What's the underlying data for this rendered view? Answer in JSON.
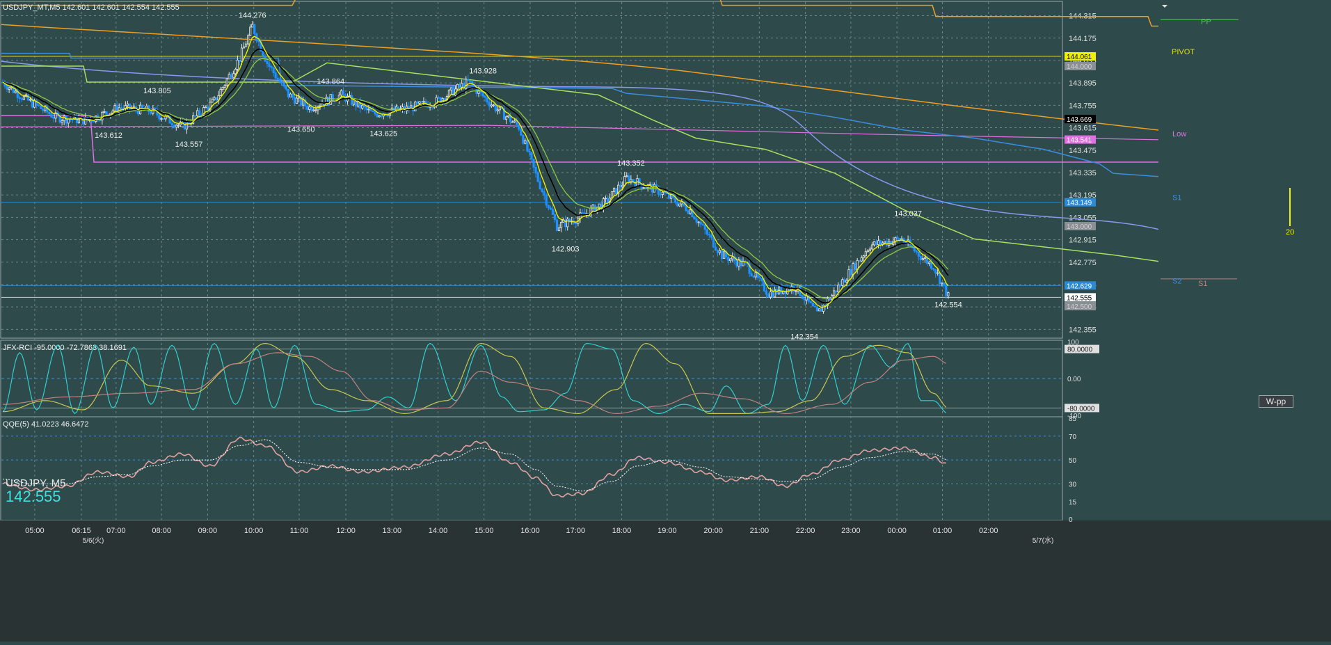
{
  "header": {
    "symbol_line": "USDJPY_MT,M5  142.601 142.601 142.554 142.555",
    "rci_line": "JFX-RCI -95.0000 -72.7863 38.1691",
    "qqe_line": "QQE(5) 41.0223 46.6472"
  },
  "symbol_box": {
    "name": "USDJPY, M5",
    "price": "142.555"
  },
  "pivots": {
    "pp": "PP",
    "pivot": "PIVOT",
    "low": "Low",
    "s1_a": "S1",
    "s1_b": "S1",
    "s2": "S2",
    "bar_value": "20"
  },
  "wpp_button": "W-pp",
  "price_axis": {
    "ticks": [
      "144.315",
      "144.175",
      "144.035",
      "143.895",
      "143.755",
      "143.615",
      "143.475",
      "143.335",
      "143.195",
      "143.055",
      "142.915",
      "142.775",
      "142.635",
      "142.495",
      "142.355"
    ],
    "badges": [
      {
        "label": "144.061",
        "value": 144.061,
        "bg": "#f0f000",
        "fg": "#000000"
      },
      {
        "label": "144.000",
        "value": 144.0,
        "bg": "#8a8f95",
        "fg": "#d0d0d0"
      },
      {
        "label": "143.669",
        "value": 143.669,
        "bg": "#000000",
        "fg": "#ffffff"
      },
      {
        "label": "143.541",
        "value": 143.541,
        "bg": "#e070e0",
        "fg": "#ffffff"
      },
      {
        "label": "143.149",
        "value": 143.149,
        "bg": "#2a8ad8",
        "fg": "#ffffff"
      },
      {
        "label": "143.000",
        "value": 143.0,
        "bg": "#8a8f95",
        "fg": "#d0d0d0"
      },
      {
        "label": "142.629",
        "value": 142.629,
        "bg": "#2a8ad8",
        "fg": "#ffffff"
      },
      {
        "label": "142.555",
        "value": 142.555,
        "bg": "#ffffff",
        "fg": "#000000"
      },
      {
        "label": "142.500",
        "value": 142.5,
        "bg": "#8a8f95",
        "fg": "#d0d0d0"
      }
    ]
  },
  "rci_axis": {
    "ticks": [
      "100",
      "80.0000",
      "0.00",
      "-80.0000",
      "-100"
    ]
  },
  "qqe_axis": {
    "ticks": [
      "85",
      "70",
      "50",
      "30",
      "15"
    ]
  },
  "time_axis": {
    "ticks": [
      "05:00",
      "06:15",
      "07:00",
      "08:00",
      "09:00",
      "10:00",
      "11:00",
      "12:00",
      "13:00",
      "14:00",
      "15:00",
      "16:00",
      "17:00",
      "18:00",
      "19:00",
      "20:00",
      "21:00",
      "22:00",
      "23:00",
      "00:00",
      "01:00",
      "02:00"
    ],
    "dates": [
      "5/6(火)",
      "5/7(水)"
    ]
  },
  "colors": {
    "background": "#2f4a4a",
    "bull": "#e8e8e8",
    "bear": "#1e90ff",
    "ema_fast": "#f0f000",
    "ema_mid": "#000000",
    "ema_slow": "#a8e060",
    "sma_long": "#f0a020",
    "sma_mid": "#8899ee",
    "pivot_pink": "#e070e0",
    "rci_fast": "#30d0d0",
    "rci_mid": "#c8c850",
    "rci_slow": "#c08080",
    "qqe_main": "#e0a0a0",
    "qqe_signal": "#ffffff"
  },
  "chart_data": [
    {
      "type": "candlestick",
      "title": "USDJPY_MT,M5",
      "ylim": [
        142.3,
        144.4
      ],
      "x": [
        "05:00",
        "06:15",
        "07:00",
        "08:00",
        "09:00",
        "10:00",
        "11:00",
        "12:00",
        "13:00",
        "14:00",
        "15:00",
        "16:00",
        "17:00",
        "18:00",
        "19:00",
        "20:00",
        "21:00",
        "22:00",
        "23:00",
        "00:00",
        "01:00",
        "02:00"
      ],
      "anchors": [
        {
          "t": 0,
          "p": 143.9
        },
        {
          "t": 10,
          "p": 143.8
        },
        {
          "t": 25,
          "p": 143.68
        },
        {
          "t": 40,
          "p": 143.66
        },
        {
          "t": 55,
          "p": 143.74
        },
        {
          "t": 70,
          "p": 143.72
        },
        {
          "t": 85,
          "p": 143.62
        },
        {
          "t": 100,
          "p": 143.78
        },
        {
          "t": 112,
          "p": 144.05
        },
        {
          "t": 118,
          "p": 144.25
        },
        {
          "t": 125,
          "p": 144.02
        },
        {
          "t": 135,
          "p": 143.82
        },
        {
          "t": 145,
          "p": 143.74
        },
        {
          "t": 160,
          "p": 143.82
        },
        {
          "t": 175,
          "p": 143.7
        },
        {
          "t": 190,
          "p": 143.73
        },
        {
          "t": 205,
          "p": 143.78
        },
        {
          "t": 220,
          "p": 143.9
        },
        {
          "t": 232,
          "p": 143.75
        },
        {
          "t": 244,
          "p": 143.62
        },
        {
          "t": 252,
          "p": 143.32
        },
        {
          "t": 262,
          "p": 143.0
        },
        {
          "t": 272,
          "p": 143.05
        },
        {
          "t": 285,
          "p": 143.15
        },
        {
          "t": 295,
          "p": 143.3
        },
        {
          "t": 310,
          "p": 143.22
        },
        {
          "t": 325,
          "p": 143.1
        },
        {
          "t": 340,
          "p": 142.82
        },
        {
          "t": 352,
          "p": 142.75
        },
        {
          "t": 362,
          "p": 142.58
        },
        {
          "t": 375,
          "p": 142.62
        },
        {
          "t": 385,
          "p": 142.45
        },
        {
          "t": 395,
          "p": 142.62
        },
        {
          "t": 410,
          "p": 142.88
        },
        {
          "t": 425,
          "p": 142.92
        },
        {
          "t": 435,
          "p": 142.8
        },
        {
          "t": 440,
          "p": 142.75
        },
        {
          "t": 447,
          "p": 142.56
        }
      ],
      "annotations": [
        {
          "label": "144.276",
          "t": 118,
          "p": 144.276,
          "pos": "above"
        },
        {
          "label": "143.805",
          "t": 73,
          "p": 143.805,
          "pos": "above"
        },
        {
          "label": "143.612",
          "t": 50,
          "p": 143.612,
          "pos": "below"
        },
        {
          "label": "143.557",
          "t": 88,
          "p": 143.557,
          "pos": "below"
        },
        {
          "label": "143.864",
          "t": 155,
          "p": 143.864,
          "pos": "above"
        },
        {
          "label": "143.650",
          "t": 141,
          "p": 143.65,
          "pos": "below"
        },
        {
          "label": "143.625",
          "t": 180,
          "p": 143.625,
          "pos": "below"
        },
        {
          "label": "143.928",
          "t": 227,
          "p": 143.928,
          "pos": "above"
        },
        {
          "label": "143.352",
          "t": 297,
          "p": 143.352,
          "pos": "above"
        },
        {
          "label": "142.903",
          "t": 266,
          "p": 142.903,
          "pos": "below"
        },
        {
          "label": "143.037",
          "t": 428,
          "p": 143.037,
          "pos": "above"
        },
        {
          "label": "142.354",
          "t": 379,
          "p": 142.354,
          "pos": "below"
        },
        {
          "label": "142.554",
          "t": 447,
          "p": 142.554,
          "pos": "below"
        }
      ]
    },
    {
      "type": "line",
      "title": "JFX-RCI",
      "ylim": [
        -100,
        100
      ],
      "series": [
        {
          "name": "-95.0000",
          "anchors": [
            [
              0,
              -90
            ],
            [
              8,
              70
            ],
            [
              16,
              -85
            ],
            [
              26,
              90
            ],
            [
              34,
              -95
            ],
            [
              44,
              90
            ],
            [
              52,
              -80
            ],
            [
              62,
              85
            ],
            [
              70,
              -70
            ],
            [
              80,
              90
            ],
            [
              90,
              -85
            ],
            [
              100,
              95
            ],
            [
              110,
              -70
            ],
            [
              120,
              80
            ],
            [
              128,
              -80
            ],
            [
              138,
              90
            ],
            [
              148,
              -70
            ],
            [
              160,
              -90
            ],
            [
              172,
              -85
            ],
            [
              182,
              -50
            ],
            [
              192,
              -80
            ],
            [
              202,
              95
            ],
            [
              214,
              -60
            ],
            [
              226,
              90
            ],
            [
              236,
              -50
            ],
            [
              244,
              -90
            ],
            [
              256,
              -85
            ],
            [
              266,
              -40
            ],
            [
              276,
              95
            ],
            [
              288,
              80
            ],
            [
              298,
              -60
            ],
            [
              310,
              -95
            ],
            [
              322,
              -70
            ],
            [
              334,
              -90
            ],
            [
              342,
              -20
            ],
            [
              352,
              -95
            ],
            [
              362,
              -70
            ],
            [
              370,
              90
            ],
            [
              378,
              -60
            ],
            [
              388,
              90
            ],
            [
              398,
              -70
            ],
            [
              410,
              90
            ],
            [
              420,
              30
            ],
            [
              428,
              95
            ],
            [
              434,
              -60
            ],
            [
              440,
              -60
            ],
            [
              447,
              -95
            ]
          ]
        },
        {
          "name": "-72.7863",
          "anchors": [
            [
              0,
              -90
            ],
            [
              20,
              -60
            ],
            [
              38,
              -85
            ],
            [
              56,
              50
            ],
            [
              70,
              -20
            ],
            [
              90,
              -40
            ],
            [
              110,
              40
            ],
            [
              124,
              95
            ],
            [
              138,
              60
            ],
            [
              155,
              -30
            ],
            [
              172,
              -60
            ],
            [
              190,
              -95
            ],
            [
              210,
              -60
            ],
            [
              226,
              95
            ],
            [
              240,
              60
            ],
            [
              256,
              -80
            ],
            [
              272,
              -95
            ],
            [
              290,
              -30
            ],
            [
              304,
              95
            ],
            [
              318,
              40
            ],
            [
              334,
              -95
            ],
            [
              350,
              -95
            ],
            [
              366,
              -90
            ],
            [
              382,
              -60
            ],
            [
              398,
              60
            ],
            [
              414,
              90
            ],
            [
              428,
              70
            ],
            [
              440,
              -40
            ],
            [
              447,
              -80
            ]
          ]
        },
        {
          "name": "38.1691",
          "anchors": [
            [
              0,
              -70
            ],
            [
              30,
              -50
            ],
            [
              60,
              -40
            ],
            [
              90,
              -30
            ],
            [
              110,
              40
            ],
            [
              130,
              70
            ],
            [
              145,
              60
            ],
            [
              160,
              20
            ],
            [
              175,
              -60
            ],
            [
              190,
              -85
            ],
            [
              210,
              -80
            ],
            [
              226,
              20
            ],
            [
              240,
              -10
            ],
            [
              256,
              -30
            ],
            [
              272,
              -60
            ],
            [
              290,
              -95
            ],
            [
              310,
              -75
            ],
            [
              330,
              -40
            ],
            [
              350,
              -55
            ],
            [
              370,
              -95
            ],
            [
              392,
              -70
            ],
            [
              410,
              -10
            ],
            [
              426,
              50
            ],
            [
              440,
              60
            ],
            [
              447,
              40
            ]
          ]
        }
      ]
    },
    {
      "type": "line",
      "title": "QQE(5)",
      "ylim": [
        0,
        85
      ],
      "series": [
        {
          "name": "41.0223",
          "anchors": [
            [
              0,
              30
            ],
            [
              15,
              25
            ],
            [
              30,
              28
            ],
            [
              45,
              40
            ],
            [
              60,
              36
            ],
            [
              70,
              48
            ],
            [
              85,
              55
            ],
            [
              98,
              45
            ],
            [
              112,
              68
            ],
            [
              124,
              62
            ],
            [
              140,
              40
            ],
            [
              155,
              45
            ],
            [
              170,
              40
            ],
            [
              190,
              44
            ],
            [
              210,
              55
            ],
            [
              226,
              65
            ],
            [
              240,
              48
            ],
            [
              252,
              35
            ],
            [
              262,
              20
            ],
            [
              274,
              22
            ],
            [
              288,
              38
            ],
            [
              300,
              52
            ],
            [
              314,
              48
            ],
            [
              330,
              40
            ],
            [
              342,
              33
            ],
            [
              358,
              36
            ],
            [
              370,
              28
            ],
            [
              382,
              38
            ],
            [
              396,
              50
            ],
            [
              410,
              58
            ],
            [
              426,
              60
            ],
            [
              440,
              52
            ],
            [
              447,
              46
            ]
          ]
        },
        {
          "name": "46.6472",
          "anchors": [
            [
              0,
              34
            ],
            [
              15,
              30
            ],
            [
              30,
              30
            ],
            [
              45,
              36
            ],
            [
              60,
              38
            ],
            [
              70,
              45
            ],
            [
              85,
              50
            ],
            [
              98,
              50
            ],
            [
              112,
              62
            ],
            [
              124,
              67
            ],
            [
              140,
              48
            ],
            [
              155,
              44
            ],
            [
              170,
              42
            ],
            [
              190,
              42
            ],
            [
              210,
              50
            ],
            [
              226,
              60
            ],
            [
              240,
              55
            ],
            [
              252,
              42
            ],
            [
              262,
              28
            ],
            [
              274,
              24
            ],
            [
              288,
              32
            ],
            [
              300,
              45
            ],
            [
              314,
              50
            ],
            [
              330,
              44
            ],
            [
              342,
              36
            ],
            [
              358,
              34
            ],
            [
              370,
              32
            ],
            [
              382,
              34
            ],
            [
              396,
              44
            ],
            [
              410,
              52
            ],
            [
              426,
              57
            ],
            [
              440,
              55
            ],
            [
              447,
              50
            ]
          ]
        }
      ]
    }
  ]
}
